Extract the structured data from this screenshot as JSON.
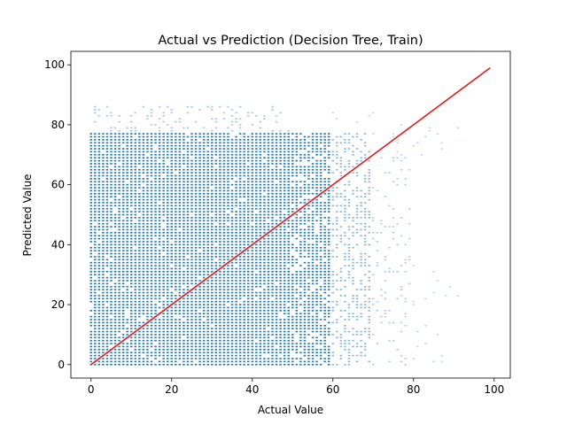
{
  "chart_data": {
    "type": "scatter",
    "title": "Actual vs Prediction (Decision Tree, Train)",
    "xlabel": "Actual Value",
    "ylabel": "Predicted Value",
    "xlim": [
      -5,
      104
    ],
    "ylim": [
      -4.5,
      104.5
    ],
    "xticks": [
      0,
      20,
      40,
      60,
      80,
      100
    ],
    "yticks": [
      0,
      20,
      40,
      60,
      80,
      100
    ],
    "grid": false,
    "legend": "none",
    "point_color": "#1f77b4",
    "reference_line_color": "#e31a1c",
    "series": [
      {
        "kind": "scatter",
        "x_step": 1,
        "y_step": 1,
        "density_by_x_range": [
          {
            "x_range": [
              0,
              50
            ],
            "y_range": [
              0,
              78
            ],
            "density": 0.95
          },
          {
            "x_range": [
              0,
              50
            ],
            "y_range": [
              78,
              87
            ],
            "density": 0.22
          },
          {
            "x_range": [
              50,
              60
            ],
            "y_range": [
              0,
              78
            ],
            "density": 0.8
          },
          {
            "x_range": [
              60,
              70
            ],
            "y_range": [
              0,
              78
            ],
            "density": 0.45
          },
          {
            "x_range": [
              70,
              80
            ],
            "y_range": [
              0,
              70
            ],
            "density": 0.15
          },
          {
            "x_range": [
              80,
              92
            ],
            "y_range": [
              0,
              35
            ],
            "density": 0.04
          }
        ]
      },
      {
        "kind": "line",
        "x": [
          0,
          99
        ],
        "y": [
          0,
          99
        ]
      }
    ]
  }
}
